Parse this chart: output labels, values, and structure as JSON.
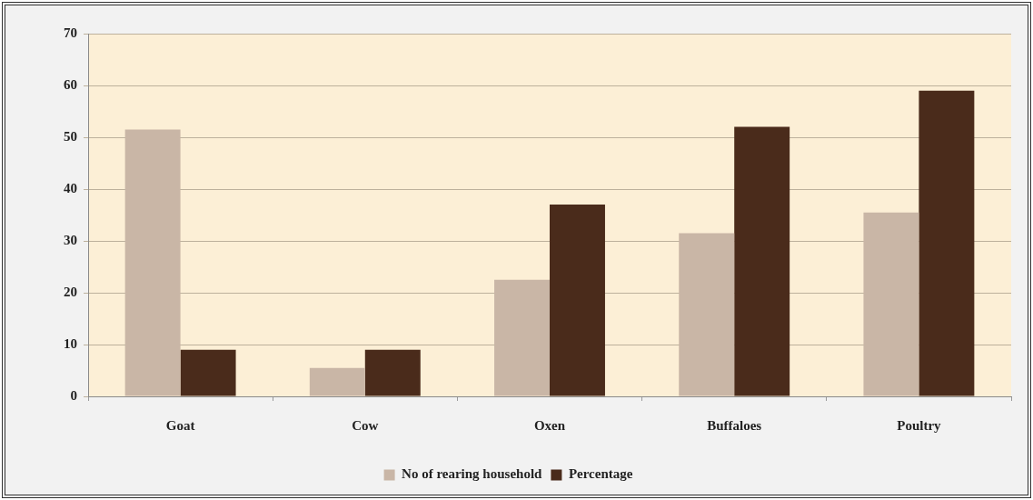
{
  "chart_data": {
    "type": "bar",
    "categories": [
      "Goat",
      "Cow",
      "Oxen",
      "Buffaloes",
      "Poultry"
    ],
    "series": [
      {
        "name": "No of rearing household",
        "color": "#c9b6a6",
        "values": [
          51.5,
          5.5,
          22.5,
          31.5,
          35.5
        ]
      },
      {
        "name": "Percentage",
        "color": "#4a2b1b",
        "values": [
          9,
          9,
          37,
          52,
          59
        ]
      }
    ],
    "ylim": [
      0,
      70
    ],
    "yticks": [
      0,
      10,
      20,
      30,
      40,
      50,
      60,
      70
    ],
    "grid": "y",
    "legend": "bottom"
  }
}
